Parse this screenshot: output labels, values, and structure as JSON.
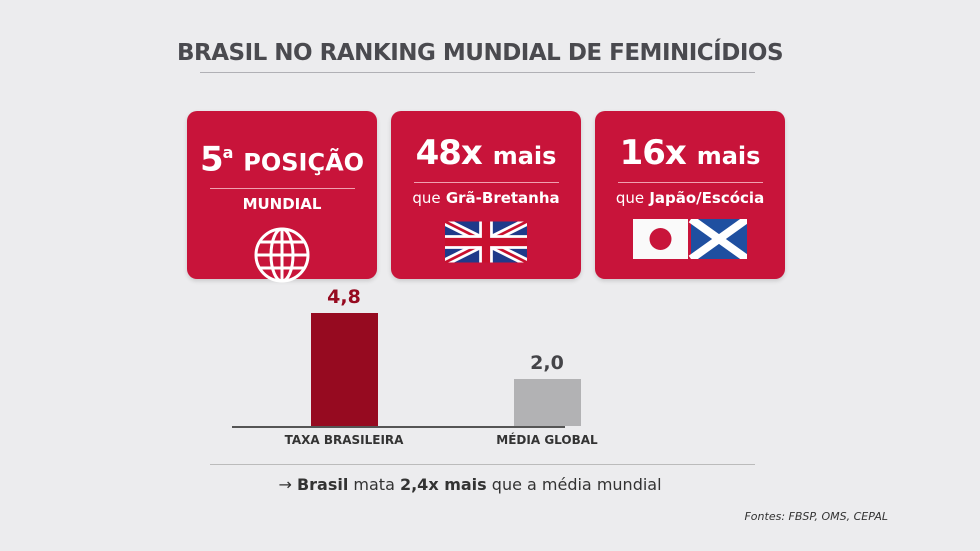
{
  "title": "BRASIL NO RANKING MUNDIAL DE FEMINICÍDIOS",
  "cards": [
    {
      "big_number": "5",
      "superscript": "a",
      "big_word": "POSIÇÃO",
      "sub_bold": "MUNDIAL",
      "icon": "globe-icon"
    },
    {
      "big_number": "48x",
      "big_word": "mais",
      "sub_normal": "que",
      "sub_bold": "Grã-Bretanha",
      "icon": "uk-flag-icon"
    },
    {
      "big_number": "16x",
      "big_word": "mais",
      "sub_normal": "que",
      "sub_bold": "Japão/Escócia",
      "icon": "japan-scotland-flags-icon"
    }
  ],
  "chart_data": {
    "type": "bar",
    "categories": [
      "TAXA BRASILEIRA",
      "MÉDIA GLOBAL"
    ],
    "values": [
      4.8,
      2.0
    ],
    "value_labels": [
      "4,8",
      "2,0"
    ],
    "colors": [
      "#960a20",
      "#b2b2b4"
    ],
    "label_colors": [
      "#960a20",
      "#444448"
    ]
  },
  "summary": {
    "arrow": "→",
    "bold1": "Brasil",
    "t1": "mata",
    "bold2": "2,4x mais",
    "t2": "que a média mundial"
  },
  "source": "Fontes: FBSP, OMS, CEPAL",
  "colors": {
    "card": "#c8143a",
    "bar_brasil": "#960a20",
    "bar_global": "#b2b2b4"
  }
}
